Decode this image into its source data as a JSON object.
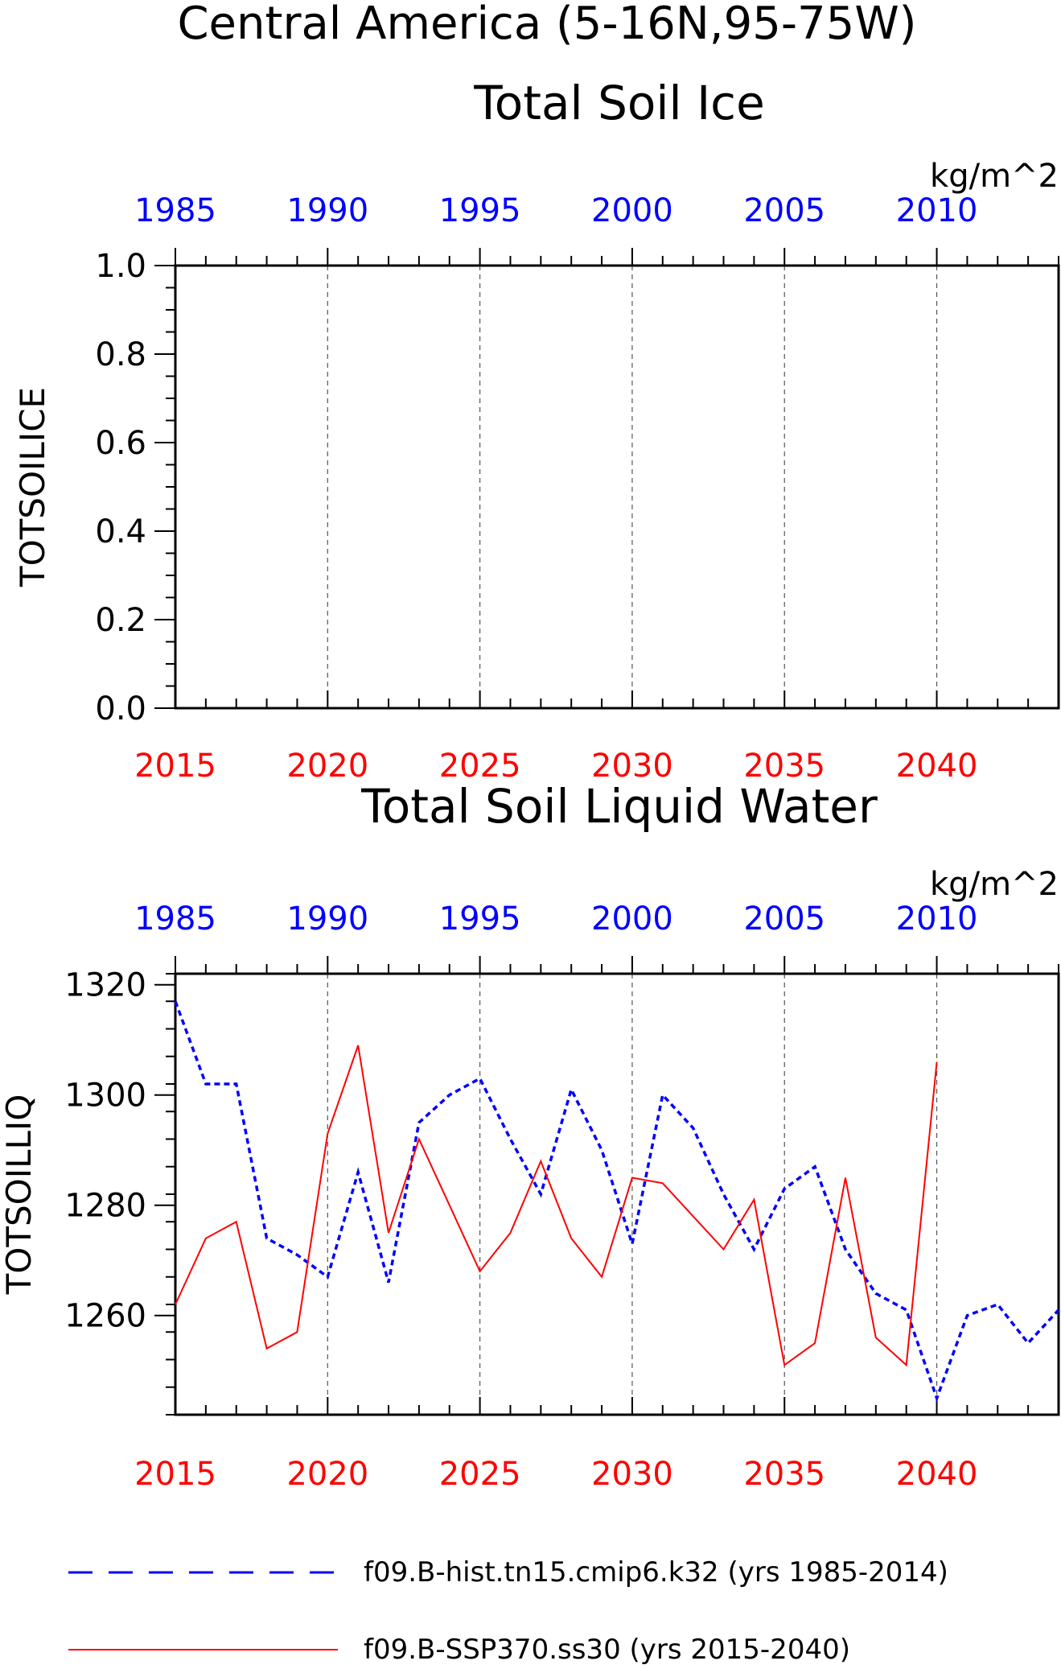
{
  "page": {
    "main_title": "Central America (5-16N,95-75W)",
    "colors": {
      "hist": "#0000ff",
      "ssp": "#ff0000",
      "axis": "#000000",
      "grid": "#555555"
    }
  },
  "legend": {
    "items": [
      {
        "label": "f09.B-hist.tn15.cmip6.k32 (yrs 1985-2014)",
        "color": "#0000ff",
        "style": "dashed"
      },
      {
        "label": "f09.B-SSP370.ss30 (yrs 2015-2040)",
        "color": "#ff0000",
        "style": "solid"
      }
    ]
  },
  "chart_data": [
    {
      "type": "line",
      "title": "Total Soil Ice",
      "units": "kg/m^2",
      "ylabel": "TOTSOILICE",
      "ylim": [
        0,
        1
      ],
      "yticks": [
        "0.0",
        "0.2",
        "0.4",
        "0.6",
        "0.8",
        "1.0"
      ],
      "ytick_values": [
        0,
        0.2,
        0.4,
        0.6,
        0.8,
        1.0
      ],
      "bottom_axis": {
        "color": "#ff0000",
        "range": [
          2015,
          2044
        ],
        "ticks": [
          "2015",
          "2020",
          "2025",
          "2030",
          "2035",
          "2040"
        ]
      },
      "top_axis": {
        "color": "#0000ff",
        "range": [
          1985,
          2014
        ],
        "ticks": [
          "1985",
          "1990",
          "1995",
          "2000",
          "2005",
          "2010"
        ]
      },
      "grid": "vertical dashed at labeled years",
      "series": []
    },
    {
      "type": "line",
      "title": "Total Soil Liquid Water",
      "units": "kg/m^2",
      "ylabel": "TOTSOILLIQ",
      "ylim": [
        1242,
        1322
      ],
      "yticks": [
        "1260",
        "1280",
        "1300",
        "1320"
      ],
      "ytick_values": [
        1260,
        1280,
        1300,
        1320
      ],
      "bottom_axis": {
        "color": "#ff0000",
        "range": [
          2015,
          2044
        ],
        "ticks": [
          "2015",
          "2020",
          "2025",
          "2030",
          "2035",
          "2040"
        ]
      },
      "top_axis": {
        "color": "#0000ff",
        "range": [
          1985,
          2014
        ],
        "ticks": [
          "1985",
          "1990",
          "1995",
          "2000",
          "2005",
          "2010"
        ]
      },
      "grid": "vertical dashed at labeled years",
      "series": [
        {
          "key": "hist",
          "color": "#0000ff",
          "style": "dashed",
          "x": [
            1985,
            1986,
            1987,
            1988,
            1989,
            1990,
            1991,
            1992,
            1993,
            1994,
            1995,
            1996,
            1997,
            1998,
            1999,
            2000,
            2001,
            2002,
            2003,
            2004,
            2005,
            2006,
            2007,
            2008,
            2009,
            2010,
            2011,
            2012,
            2013,
            2014
          ],
          "values": [
            1317,
            1302,
            1302,
            1274,
            1271,
            1267,
            1286,
            1266,
            1295,
            1300,
            1303,
            1292,
            1282,
            1301,
            1290,
            1273,
            1300,
            1294,
            1282,
            1272,
            1283,
            1287,
            1272,
            1264,
            1261,
            1245,
            1260,
            1262,
            1255,
            1261
          ]
        },
        {
          "key": "ssp",
          "color": "#ff0000",
          "style": "solid",
          "x": [
            2015,
            2016,
            2017,
            2018,
            2019,
            2020,
            2021,
            2022,
            2023,
            2024,
            2025,
            2026,
            2027,
            2028,
            2029,
            2030,
            2031,
            2032,
            2033,
            2034,
            2035,
            2036,
            2037,
            2038,
            2039,
            2040
          ],
          "values": [
            1262,
            1274,
            1277,
            1254,
            1257,
            1293,
            1309,
            1275,
            1292,
            1280,
            1268,
            1275,
            1288,
            1274,
            1267,
            1285,
            1284,
            1278,
            1272,
            1281,
            1251,
            1255,
            1285,
            1256,
            1251,
            1306
          ]
        }
      ]
    }
  ]
}
